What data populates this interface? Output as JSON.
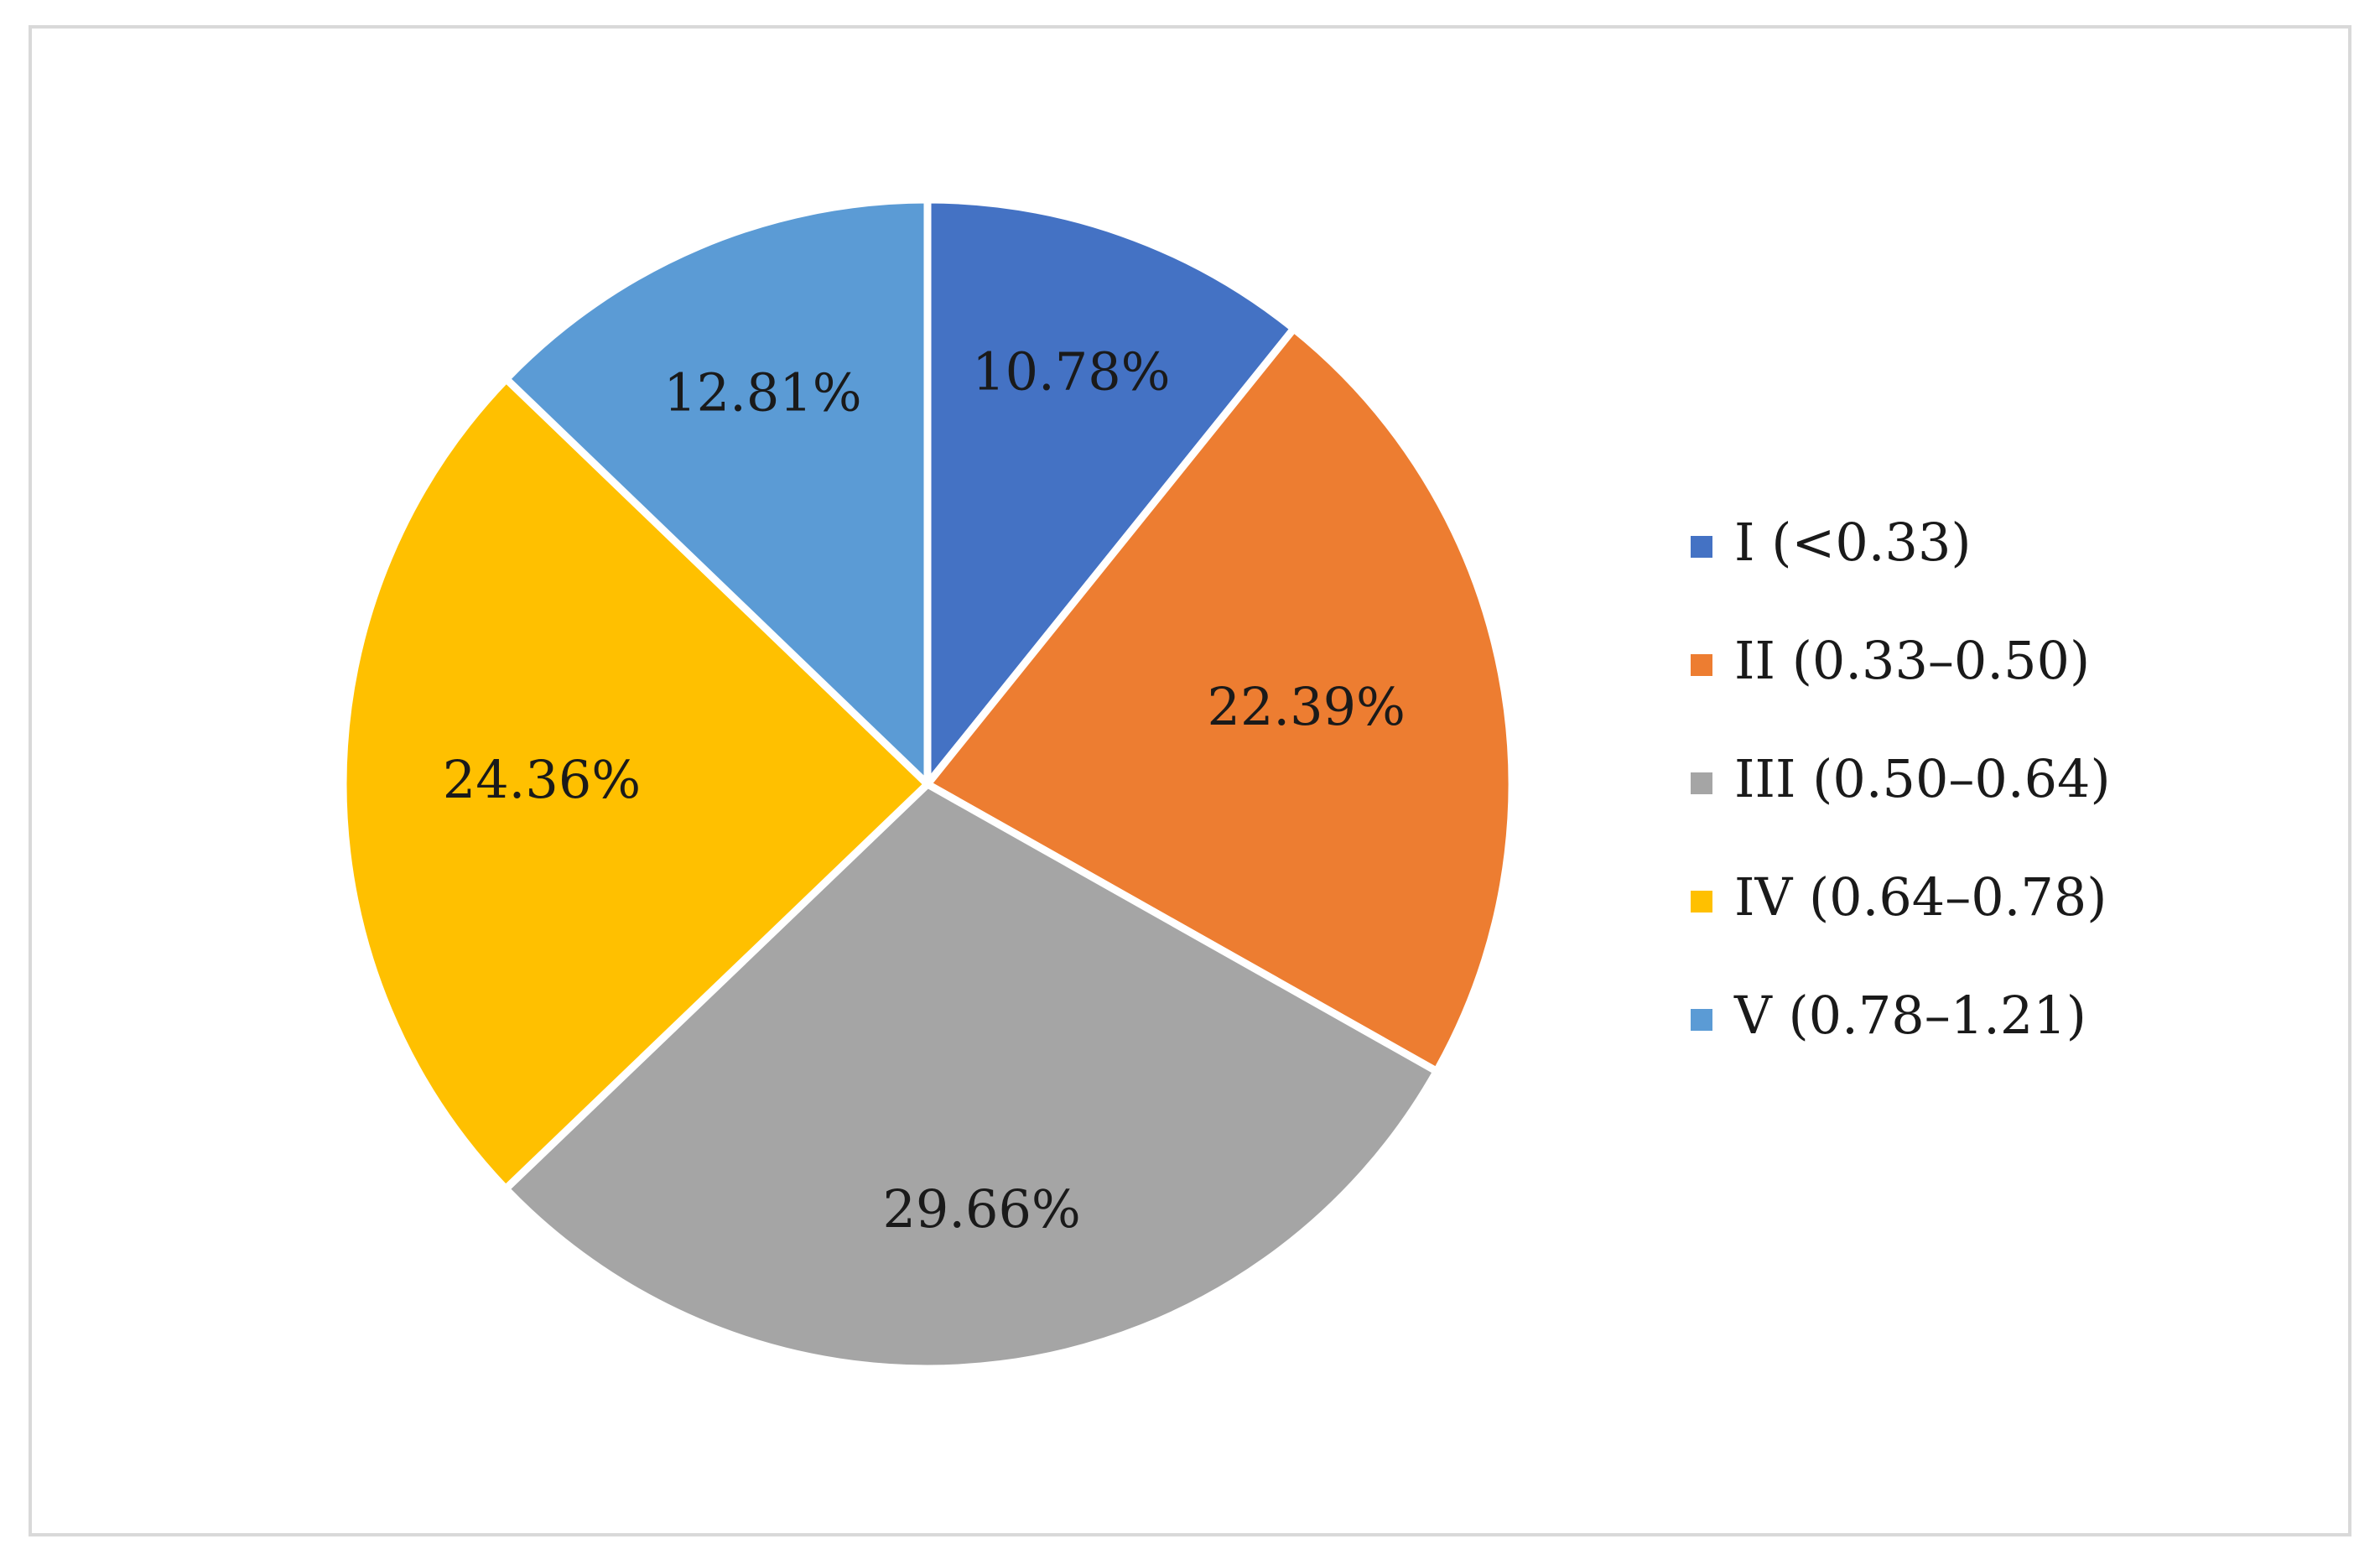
{
  "chart_data": {
    "type": "pie",
    "start_angle_deg": 0,
    "direction": "clockwise",
    "legend_position": "right",
    "slices": [
      {
        "category": "I (<0.33)",
        "value": 10.78,
        "label": "10.78%",
        "color": "#4472C4"
      },
      {
        "category": "II (0.33–0.50)",
        "value": 22.39,
        "label": "22.39%",
        "color": "#ED7D31"
      },
      {
        "category": "III (0.50–0.64)",
        "value": 29.66,
        "label": "29.66%",
        "color": "#A5A5A5"
      },
      {
        "category": "IV (0.64–0.78)",
        "value": 24.36,
        "label": "24.36%",
        "color": "#FFC000"
      },
      {
        "category": "V (0.78–1.21)",
        "value": 12.81,
        "label": "12.81%",
        "color": "#5B9BD5"
      }
    ]
  }
}
